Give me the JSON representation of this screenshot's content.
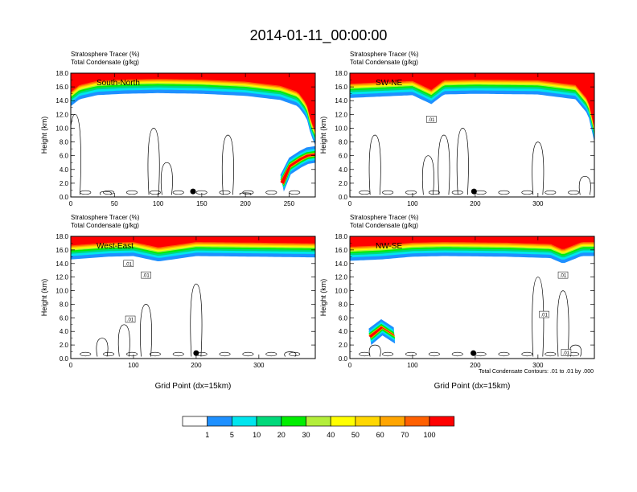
{
  "figure": {
    "title": "2014-01-11_00:00:00",
    "footnote": "Total Condensate Contours: .01 to .01 by .000"
  },
  "colors": {
    "background": "#ffffff",
    "axis": "#000000",
    "contour": "#000000"
  },
  "chart_data": [
    {
      "type": "heatmap",
      "name_label": "South-North",
      "subtitle_lines": [
        "Stratosphere Tracer   (%)",
        "Total Condensate   (g/kg)"
      ],
      "xlabel": "",
      "ylabel": "Height (km)",
      "xlim": [
        0,
        280
      ],
      "ylim": [
        0,
        18
      ],
      "xticks": [
        0,
        50,
        100,
        150,
        200,
        250
      ],
      "yticks": [
        0,
        2,
        4,
        6,
        8,
        10,
        12,
        14,
        16,
        18
      ],
      "tracer_top": [
        [
          0,
          13.2
        ],
        [
          10,
          14.2
        ],
        [
          30,
          14.8
        ],
        [
          60,
          15.0
        ],
        [
          100,
          15.1
        ],
        [
          150,
          15.0
        ],
        [
          200,
          14.7
        ],
        [
          240,
          14.1
        ],
        [
          260,
          13.2
        ],
        [
          270,
          11.5
        ],
        [
          275,
          9.0
        ],
        [
          280,
          7.5
        ]
      ],
      "secondary_plume": [
        [
          240,
          2.0
        ],
        [
          250,
          4.5
        ],
        [
          262,
          5.5
        ],
        [
          270,
          6.0
        ],
        [
          280,
          6.2
        ]
      ],
      "contour_labels": [],
      "cloud_tops_km": [
        [
          5,
          12
        ],
        [
          40,
          0.8
        ],
        [
          95,
          10
        ],
        [
          110,
          5
        ],
        [
          180,
          9
        ],
        [
          200,
          0.6
        ]
      ],
      "marker_x": 140,
      "marker_y": 0.8
    },
    {
      "type": "heatmap",
      "name_label": "SW-NE",
      "subtitle_lines": [
        "Stratosphere Tracer   (%)",
        "Total Condensate   (g/kg)"
      ],
      "xlabel": "",
      "ylabel": "Height (km)",
      "xlim": [
        0,
        390
      ],
      "ylim": [
        0,
        18
      ],
      "xticks": [
        0,
        100,
        200,
        300
      ],
      "yticks": [
        0,
        2,
        4,
        6,
        8,
        10,
        12,
        14,
        16,
        18
      ],
      "tracer_top": [
        [
          0,
          14.4
        ],
        [
          50,
          14.6
        ],
        [
          100,
          14.8
        ],
        [
          130,
          13.5
        ],
        [
          150,
          14.9
        ],
        [
          200,
          15.0
        ],
        [
          300,
          14.9
        ],
        [
          360,
          14.2
        ],
        [
          380,
          12.0
        ],
        [
          390,
          8.0
        ]
      ],
      "secondary_plume": [],
      "contour_labels": [
        {
          "x": 130,
          "y": 11.3,
          "text": ".01"
        }
      ],
      "cloud_tops_km": [
        [
          40,
          9
        ],
        [
          125,
          6
        ],
        [
          150,
          9
        ],
        [
          180,
          10
        ],
        [
          300,
          8
        ],
        [
          375,
          3
        ]
      ],
      "marker_x": 198,
      "marker_y": 0.8
    },
    {
      "type": "heatmap",
      "name_label": "West-East",
      "subtitle_lines": [
        "Stratosphere Tracer   (%)",
        "Total Condensate   (g/kg)"
      ],
      "xlabel": "Grid Point (dx=15km)",
      "ylabel": "Height (km)",
      "xlim": [
        0,
        390
      ],
      "ylim": [
        0,
        18
      ],
      "xticks": [
        0,
        100,
        200,
        300
      ],
      "yticks": [
        0,
        2,
        4,
        6,
        8,
        10,
        12,
        14,
        16,
        18
      ],
      "tracer_top": [
        [
          0,
          14.6
        ],
        [
          60,
          15.0
        ],
        [
          100,
          15.1
        ],
        [
          140,
          14.3
        ],
        [
          200,
          15.1
        ],
        [
          300,
          15.0
        ],
        [
          390,
          14.9
        ]
      ],
      "secondary_plume": [],
      "contour_labels": [
        {
          "x": 92,
          "y": 14.0,
          "text": ".01"
        },
        {
          "x": 120,
          "y": 12.3,
          "text": ".01"
        },
        {
          "x": 95,
          "y": 5.8,
          "text": ".01"
        }
      ],
      "cloud_tops_km": [
        [
          50,
          3
        ],
        [
          85,
          5
        ],
        [
          120,
          8
        ],
        [
          200,
          11
        ],
        [
          350,
          1
        ]
      ],
      "marker_x": 200,
      "marker_y": 0.8
    },
    {
      "type": "heatmap",
      "name_label": "NW-SE",
      "subtitle_lines": [
        "Stratosphere Tracer   (%)",
        "Total Condensate   (g/kg)"
      ],
      "xlabel": "Grid Point (dx=15km)",
      "ylabel": "Height (km)",
      "xlim": [
        0,
        390
      ],
      "ylim": [
        0,
        18
      ],
      "xticks": [
        0,
        100,
        200,
        300
      ],
      "yticks": [
        0,
        2,
        4,
        6,
        8,
        10,
        12,
        14,
        16,
        18
      ],
      "tracer_top": [
        [
          0,
          14.4
        ],
        [
          50,
          14.6
        ],
        [
          100,
          15.0
        ],
        [
          150,
          15.1
        ],
        [
          250,
          15.0
        ],
        [
          320,
          14.8
        ],
        [
          340,
          14.0
        ],
        [
          370,
          15.1
        ],
        [
          390,
          15.1
        ]
      ],
      "secondary_plume": [
        [
          30,
          3.2
        ],
        [
          50,
          4.6
        ],
        [
          70,
          3.4
        ]
      ],
      "contour_labels": [
        {
          "x": 340,
          "y": 12.3,
          "text": ".01"
        },
        {
          "x": 310,
          "y": 6.5,
          "text": ".01"
        },
        {
          "x": 345,
          "y": 0.9,
          "text": ".01"
        }
      ],
      "cloud_tops_km": [
        [
          40,
          2
        ],
        [
          300,
          12
        ],
        [
          340,
          10
        ],
        [
          360,
          2
        ]
      ],
      "marker_x": 197,
      "marker_y": 0.8
    }
  ],
  "colorbar": {
    "colors": [
      "#ffffff",
      "#1e90ff",
      "#00e5ee",
      "#00d97a",
      "#00ee00",
      "#b3ee3a",
      "#ffff00",
      "#ffd700",
      "#ffa500",
      "#ff6000",
      "#ff0000"
    ],
    "labels": [
      "1",
      "5",
      "10",
      "20",
      "30",
      "40",
      "50",
      "60",
      "70",
      "100"
    ]
  }
}
